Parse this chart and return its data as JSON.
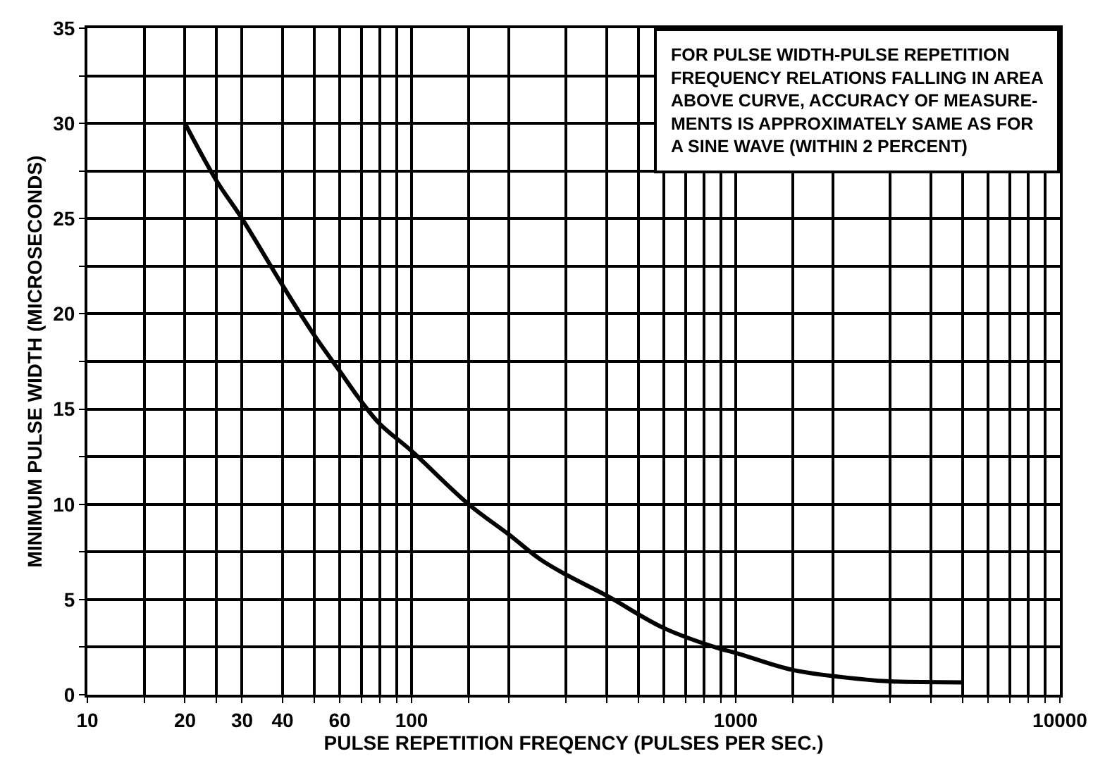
{
  "chart_data": {
    "type": "line",
    "xlabel": "PULSE REPETITION FREQENCY (PULSES PER SEC.)",
    "ylabel": "MINIMUM PULSE WIDTH (MICROSECONDS)",
    "annotations": [
      "FOR PULSE WIDTH-PULSE REPETITION\nFREQUENCY RELATIONS FALLING IN AREA\nABOVE CURVE, ACCURACY OF MEASURE-\nMENTS IS APPROXIMATELY SAME AS FOR\nA SINE WAVE (WITHIN 2 PERCENT)"
    ],
    "x": [
      20,
      25,
      30,
      40,
      50,
      60,
      70,
      80,
      100,
      150,
      200,
      250,
      300,
      400,
      600,
      900,
      1000,
      1500,
      2500,
      3000,
      5000
    ],
    "series": [
      {
        "color": "#000000",
        "values": [
          30,
          27,
          25,
          21.5,
          18.9,
          17,
          15.4,
          14.2,
          12.8,
          10,
          8.4,
          7.1,
          6.3,
          5.2,
          3.5,
          2.4,
          2.2,
          1.3,
          0.8,
          0.7,
          0.65
        ]
      }
    ],
    "log": "x",
    "xlim": [
      10,
      10000
    ],
    "xticks": [
      10,
      {
        "value": 15,
        "label": null
      },
      20,
      {
        "value": 25,
        "label": null
      },
      30,
      40,
      {
        "value": 50,
        "label": null
      },
      60,
      {
        "value": 70,
        "label": null
      },
      {
        "value": 80,
        "label": null
      },
      {
        "value": 90,
        "label": null
      },
      100,
      {
        "value": 150,
        "label": null
      },
      {
        "value": 200,
        "label": null
      },
      {
        "value": 300,
        "label": null
      },
      {
        "value": 400,
        "label": null
      },
      {
        "value": 500,
        "label": null
      },
      {
        "value": 600,
        "label": null
      },
      {
        "value": 700,
        "label": null
      },
      {
        "value": 800,
        "label": null
      },
      {
        "value": 900,
        "label": null
      },
      1000,
      {
        "value": 1500,
        "label": null
      },
      {
        "value": 2000,
        "label": null
      },
      {
        "value": 3000,
        "label": null
      },
      {
        "value": 4000,
        "label": null
      },
      {
        "value": 5000,
        "label": null
      },
      {
        "value": 6000,
        "label": null
      },
      {
        "value": 7000,
        "label": null
      },
      {
        "value": 8000,
        "label": null
      },
      {
        "value": 9000,
        "label": null
      },
      10000
    ],
    "ylim": [
      0,
      35
    ],
    "yticks": [
      0,
      {
        "value": 2.5,
        "label": null
      },
      5,
      {
        "value": 7.5,
        "label": null
      },
      10,
      {
        "value": 12.5,
        "label": null
      },
      15,
      {
        "value": 17.5,
        "label": null
      },
      20,
      {
        "value": 22.5,
        "label": null
      },
      25,
      {
        "value": 27.5,
        "label": null
      },
      30,
      {
        "value": 32.5,
        "label": null
      },
      35
    ],
    "grid": true,
    "marker": "none",
    "line_style": "solid"
  }
}
